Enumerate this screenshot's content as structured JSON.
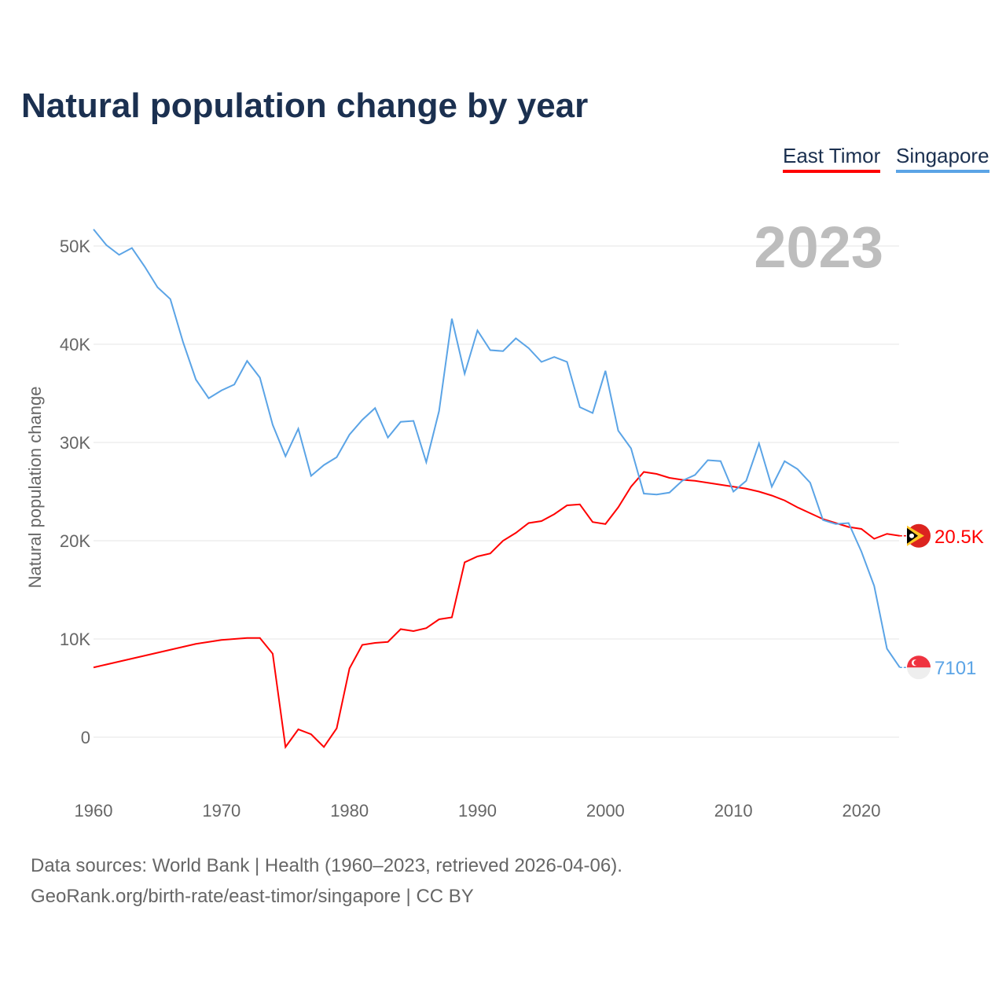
{
  "chart_data": {
    "type": "line",
    "title": "Natural population change by year",
    "xlabel": "",
    "ylabel": "Natural population change",
    "xlim": [
      1960,
      2023
    ],
    "ylim": [
      -5000,
      55000
    ],
    "grid": true,
    "legend_position": "top-right",
    "year_label": "2023",
    "x_ticks": [
      1960,
      1970,
      1980,
      1990,
      2000,
      2010,
      2020
    ],
    "y_ticks": [
      0,
      10000,
      20000,
      30000,
      40000,
      50000
    ],
    "y_tick_labels": [
      "0",
      "10K",
      "20K",
      "30K",
      "40K",
      "50K"
    ],
    "x": [
      1960,
      1961,
      1962,
      1963,
      1964,
      1965,
      1966,
      1967,
      1968,
      1969,
      1970,
      1971,
      1972,
      1973,
      1974,
      1975,
      1976,
      1977,
      1978,
      1979,
      1980,
      1981,
      1982,
      1983,
      1984,
      1985,
      1986,
      1987,
      1988,
      1989,
      1990,
      1991,
      1992,
      1993,
      1994,
      1995,
      1996,
      1997,
      1998,
      1999,
      2000,
      2001,
      2002,
      2003,
      2004,
      2005,
      2006,
      2007,
      2008,
      2009,
      2010,
      2011,
      2012,
      2013,
      2014,
      2015,
      2016,
      2017,
      2018,
      2019,
      2020,
      2021,
      2022,
      2023
    ],
    "series": [
      {
        "name": "East Timor",
        "color": "#ff0000",
        "end_label": "20.5K",
        "values": [
          7100,
          7400,
          7700,
          8000,
          8300,
          8600,
          8900,
          9200,
          9500,
          9700,
          9900,
          10000,
          10100,
          10100,
          8500,
          -1000,
          800,
          300,
          -1000,
          900,
          7000,
          9400,
          9600,
          9700,
          11000,
          10800,
          11100,
          12000,
          12200,
          17800,
          18400,
          18700,
          20000,
          20800,
          21800,
          22000,
          22700,
          23600,
          23700,
          21900,
          21700,
          23400,
          25500,
          27000,
          26800,
          26400,
          26200,
          26100,
          25900,
          25700,
          25500,
          25300,
          25000,
          24600,
          24100,
          23400,
          22800,
          22200,
          21800,
          21400,
          21200,
          20200,
          20700,
          20500
        ]
      },
      {
        "name": "Singapore",
        "color": "#5ba4e6",
        "end_label": "7101",
        "values": [
          51700,
          50100,
          49100,
          49800,
          47900,
          45800,
          44600,
          40200,
          36400,
          34500,
          35300,
          35900,
          38300,
          36600,
          31800,
          28600,
          31400,
          26600,
          27700,
          28500,
          30800,
          32300,
          33500,
          30500,
          32100,
          32200,
          28000,
          33200,
          42600,
          37000,
          41400,
          39400,
          39300,
          40600,
          39600,
          38200,
          38700,
          38200,
          33600,
          33000,
          37300,
          31200,
          29400,
          24800,
          24700,
          24900,
          26100,
          26700,
          28200,
          28100,
          25000,
          26100,
          29900,
          25500,
          28100,
          27300,
          25900,
          22100,
          21700,
          21800,
          18900,
          15400,
          9000,
          7101
        ]
      }
    ]
  },
  "footer": {
    "line1": "Data sources: World Bank | Health (1960–2023, retrieved 2026-04-06).",
    "line2": "GeoRank.org/birth-rate/east-timor/singapore | CC BY"
  }
}
